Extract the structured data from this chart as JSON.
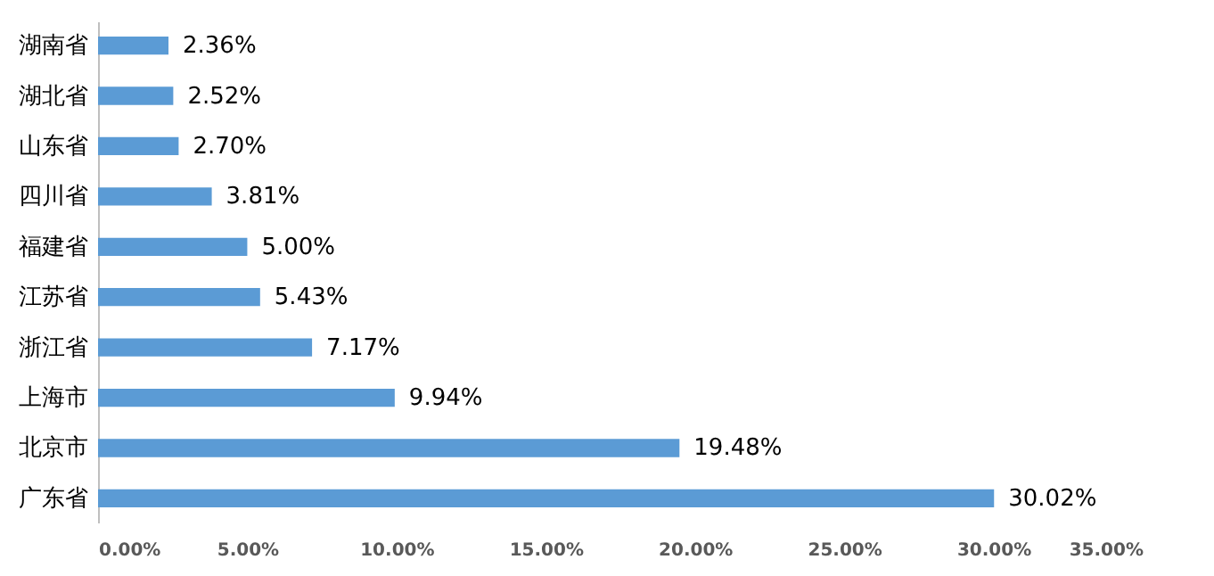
{
  "chart_data": {
    "type": "bar",
    "orientation": "horizontal",
    "categories": [
      "湖南省",
      "湖北省",
      "山东省",
      "四川省",
      "福建省",
      "江苏省",
      "浙江省",
      "上海市",
      "北京市",
      "广东省"
    ],
    "values": [
      2.36,
      2.52,
      2.7,
      3.81,
      5.0,
      5.43,
      7.17,
      9.94,
      19.48,
      30.02
    ],
    "value_labels": [
      "2.36%",
      "2.52%",
      "2.70%",
      "3.81%",
      "5.00%",
      "5.43%",
      "7.17%",
      "9.94%",
      "19.48%",
      "30.02%"
    ],
    "color": "#5b9bd5",
    "xlim": [
      0,
      35
    ],
    "xticks": [
      {
        "value": 0,
        "label": "0.00%"
      },
      {
        "value": 5,
        "label": "5.00%"
      },
      {
        "value": 10,
        "label": "10.00%"
      },
      {
        "value": 15,
        "label": "15.00%"
      },
      {
        "value": 20,
        "label": "20.00%"
      },
      {
        "value": 25,
        "label": "25.00%"
      },
      {
        "value": 30,
        "label": "30.00%"
      },
      {
        "value": 35,
        "label": "35.00%"
      }
    ],
    "grid": false
  }
}
